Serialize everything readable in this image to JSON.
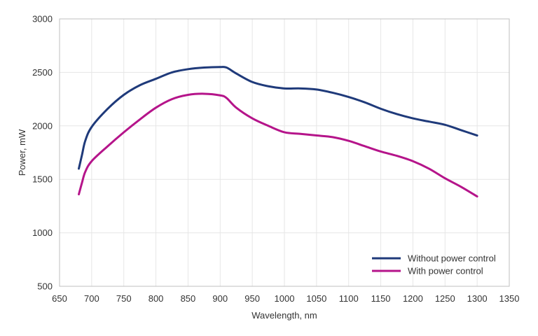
{
  "chart_data": {
    "type": "line",
    "title": "",
    "xlabel": "Wavelength, nm",
    "ylabel": "Power, mW",
    "xlim": [
      650,
      1350
    ],
    "ylim": [
      500,
      3000
    ],
    "xticks": [
      650,
      700,
      750,
      800,
      850,
      900,
      950,
      1000,
      1050,
      1100,
      1150,
      1200,
      1250,
      1300,
      1350
    ],
    "yticks": [
      500,
      1000,
      1500,
      2000,
      2500,
      3000
    ],
    "grid": true,
    "legend_position": "bottom-right",
    "series": [
      {
        "name": "Without power control",
        "color": "#1f3a7a",
        "x": [
          680,
          685,
          690,
          700,
          725,
          750,
          775,
          800,
          825,
          850,
          875,
          900,
          910,
          925,
          950,
          975,
          1000,
          1025,
          1050,
          1075,
          1100,
          1125,
          1150,
          1175,
          1200,
          1225,
          1250,
          1275,
          1300
        ],
        "y": [
          1600,
          1730,
          1860,
          1990,
          2160,
          2290,
          2380,
          2440,
          2500,
          2530,
          2545,
          2550,
          2545,
          2490,
          2410,
          2370,
          2350,
          2350,
          2340,
          2310,
          2270,
          2220,
          2160,
          2110,
          2070,
          2040,
          2010,
          1960,
          1910
        ]
      },
      {
        "name": "With power control",
        "color": "#b5148a",
        "x": [
          680,
          685,
          690,
          700,
          725,
          750,
          775,
          800,
          825,
          850,
          875,
          900,
          910,
          925,
          950,
          975,
          1000,
          1025,
          1050,
          1075,
          1100,
          1125,
          1150,
          1175,
          1200,
          1225,
          1250,
          1275,
          1300
        ],
        "y": [
          1360,
          1470,
          1570,
          1670,
          1810,
          1940,
          2060,
          2170,
          2250,
          2290,
          2300,
          2285,
          2260,
          2170,
          2070,
          2000,
          1940,
          1925,
          1910,
          1895,
          1860,
          1810,
          1760,
          1720,
          1670,
          1600,
          1510,
          1430,
          1340
        ]
      }
    ]
  }
}
